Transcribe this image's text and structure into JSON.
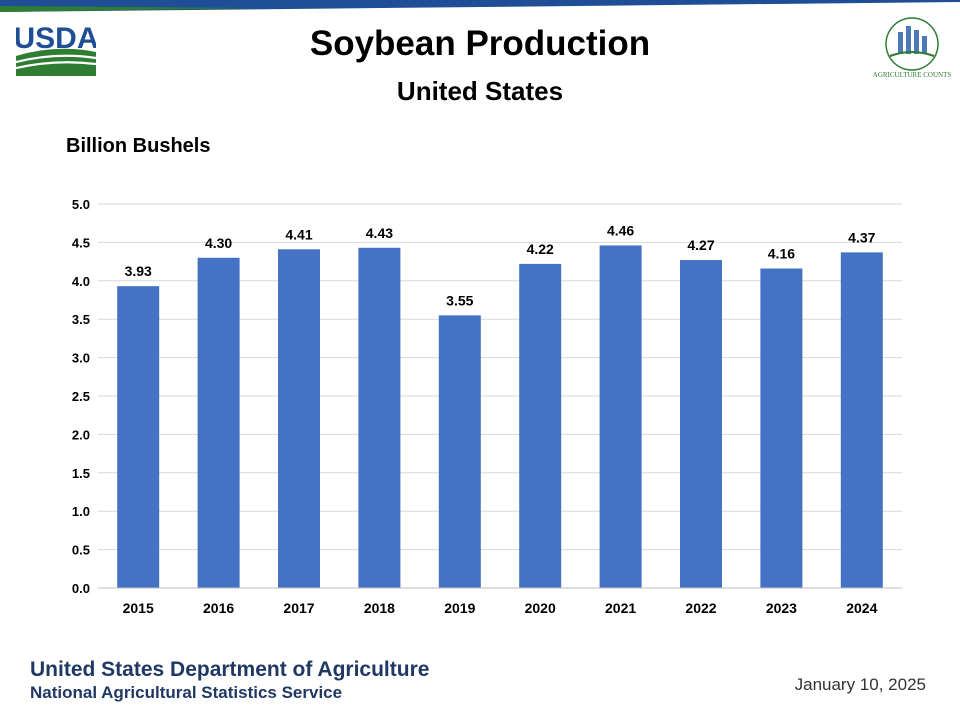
{
  "header": {
    "title": "Soybean Production",
    "subtitle": "United States",
    "usda_logo_text": "USDA",
    "ag_logo_text": "AGRICULTURE COUNTS"
  },
  "footer": {
    "org": "United States Department of Agriculture",
    "sub": "National Agricultural Statistics Service",
    "date": "January 10, 2025"
  },
  "colors": {
    "bar": "#4472c4",
    "grid": "#d9d9d9",
    "footer_text": "#1f3864",
    "usda_blue": "#1f4e96",
    "usda_green": "#2e7d32"
  },
  "chart_data": {
    "type": "bar",
    "title": "Soybean Production",
    "subtitle": "United States",
    "ylabel": "Billion Bushels",
    "xlabel": "",
    "categories": [
      "2015",
      "2016",
      "2017",
      "2018",
      "2019",
      "2020",
      "2021",
      "2022",
      "2023",
      "2024"
    ],
    "values": [
      3.93,
      4.3,
      4.41,
      4.43,
      3.55,
      4.22,
      4.46,
      4.27,
      4.16,
      4.37
    ],
    "data_labels": [
      "3.93",
      "4.30",
      "4.41",
      "4.43",
      "3.55",
      "4.22",
      "4.46",
      "4.27",
      "4.16",
      "4.37"
    ],
    "ylim": [
      0,
      5
    ],
    "yticks": [
      "0.0",
      "0.5",
      "1.0",
      "1.5",
      "2.0",
      "2.5",
      "3.0",
      "3.5",
      "4.0",
      "4.5",
      "5.0"
    ],
    "grid": true
  }
}
